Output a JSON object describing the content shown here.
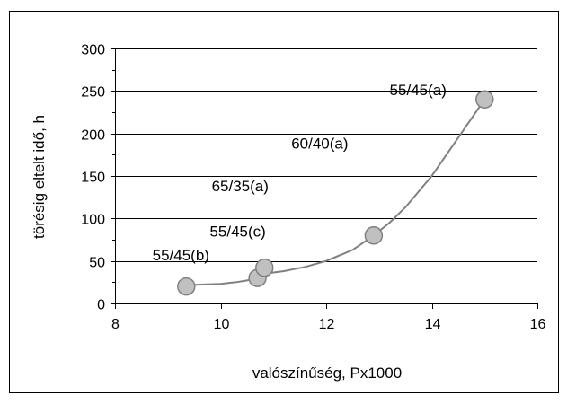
{
  "chart_data": {
    "type": "scatter",
    "title": "",
    "xlabel": "valószínűség, Px1000",
    "ylabel": "törésig eltelt idő, h",
    "xlim": [
      8,
      16
    ],
    "ylim": [
      0,
      300
    ],
    "x_ticks": [
      "8",
      "10",
      "12",
      "14",
      "16"
    ],
    "y_ticks": [
      "0",
      "50",
      "100",
      "150",
      "200",
      "250",
      "300"
    ],
    "grid": "horizontal",
    "legend": "none",
    "points": [
      {
        "x": 9.35,
        "y": 20,
        "label": "55/45(b)"
      },
      {
        "x": 10.7,
        "y": 30,
        "label": "55/45(c)"
      },
      {
        "x": 10.83,
        "y": 42,
        "label": "65/35(a)"
      },
      {
        "x": 12.9,
        "y": 80,
        "label": "60/40(a)"
      },
      {
        "x": 15.0,
        "y": 240,
        "label": "55/45(a)"
      }
    ],
    "trend_line": {
      "x": [
        9.35,
        9.5,
        10.0,
        10.3,
        10.5,
        10.7,
        10.83,
        11.2,
        11.6,
        12.0,
        12.5,
        12.9,
        13.2,
        13.5,
        14.0,
        14.5,
        15.0
      ],
      "y": [
        20,
        22,
        23,
        25,
        27,
        30,
        35,
        38,
        43,
        50,
        63,
        80,
        95,
        113,
        150,
        195,
        240
      ]
    },
    "colors": {
      "marker_fill": "#c0c0c0",
      "marker_stroke": "#808080",
      "line": "#808080",
      "grid": "#000000"
    }
  }
}
